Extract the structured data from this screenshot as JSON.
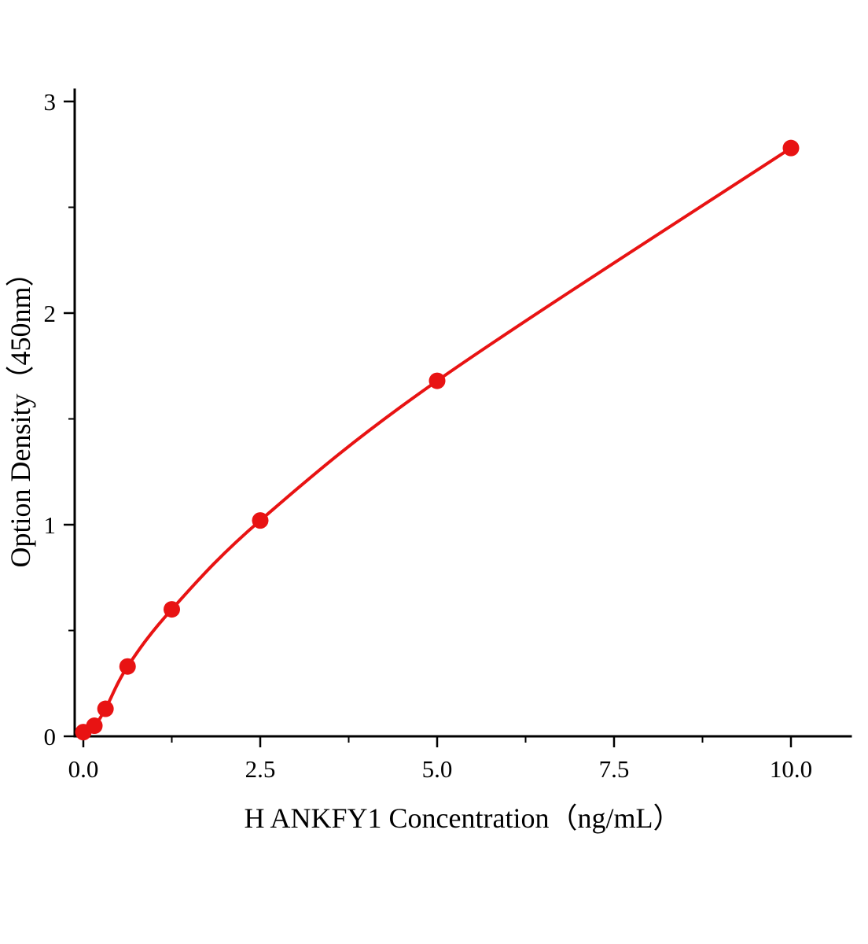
{
  "chart_data": {
    "type": "scatter",
    "title": "",
    "xlabel": "H ANKFY1 Concentration（ng/mL）",
    "ylabel": "Option Density（450nm）",
    "x": [
      0,
      0.156,
      0.313,
      0.625,
      1.25,
      2.5,
      5,
      10
    ],
    "y": [
      0.02,
      0.05,
      0.13,
      0.33,
      0.6,
      1.02,
      1.68,
      2.78
    ],
    "xlim": [
      0,
      10.8
    ],
    "ylim": [
      0,
      3.05
    ],
    "x_ticks": [
      {
        "value": 0,
        "label": "0.0"
      },
      {
        "value": 2.5,
        "label": "2.5"
      },
      {
        "value": 5,
        "label": "5.0"
      },
      {
        "value": 7.5,
        "label": "7.5"
      },
      {
        "value": 10,
        "label": "10.0"
      }
    ],
    "y_ticks": [
      {
        "value": 0,
        "label": "0"
      },
      {
        "value": 1,
        "label": "1"
      },
      {
        "value": 2,
        "label": "2"
      },
      {
        "value": 3,
        "label": "3"
      }
    ],
    "x_minor_step": 1.25,
    "y_minor_step": 0.5,
    "grid": false,
    "legend_position": "none",
    "curve_style": "smooth",
    "colors": {
      "line": "#e81313",
      "marker": "#e81313",
      "axis": "#000000",
      "background": "#ffffff"
    },
    "marker_radius": 10.5,
    "line_width": 4
  }
}
